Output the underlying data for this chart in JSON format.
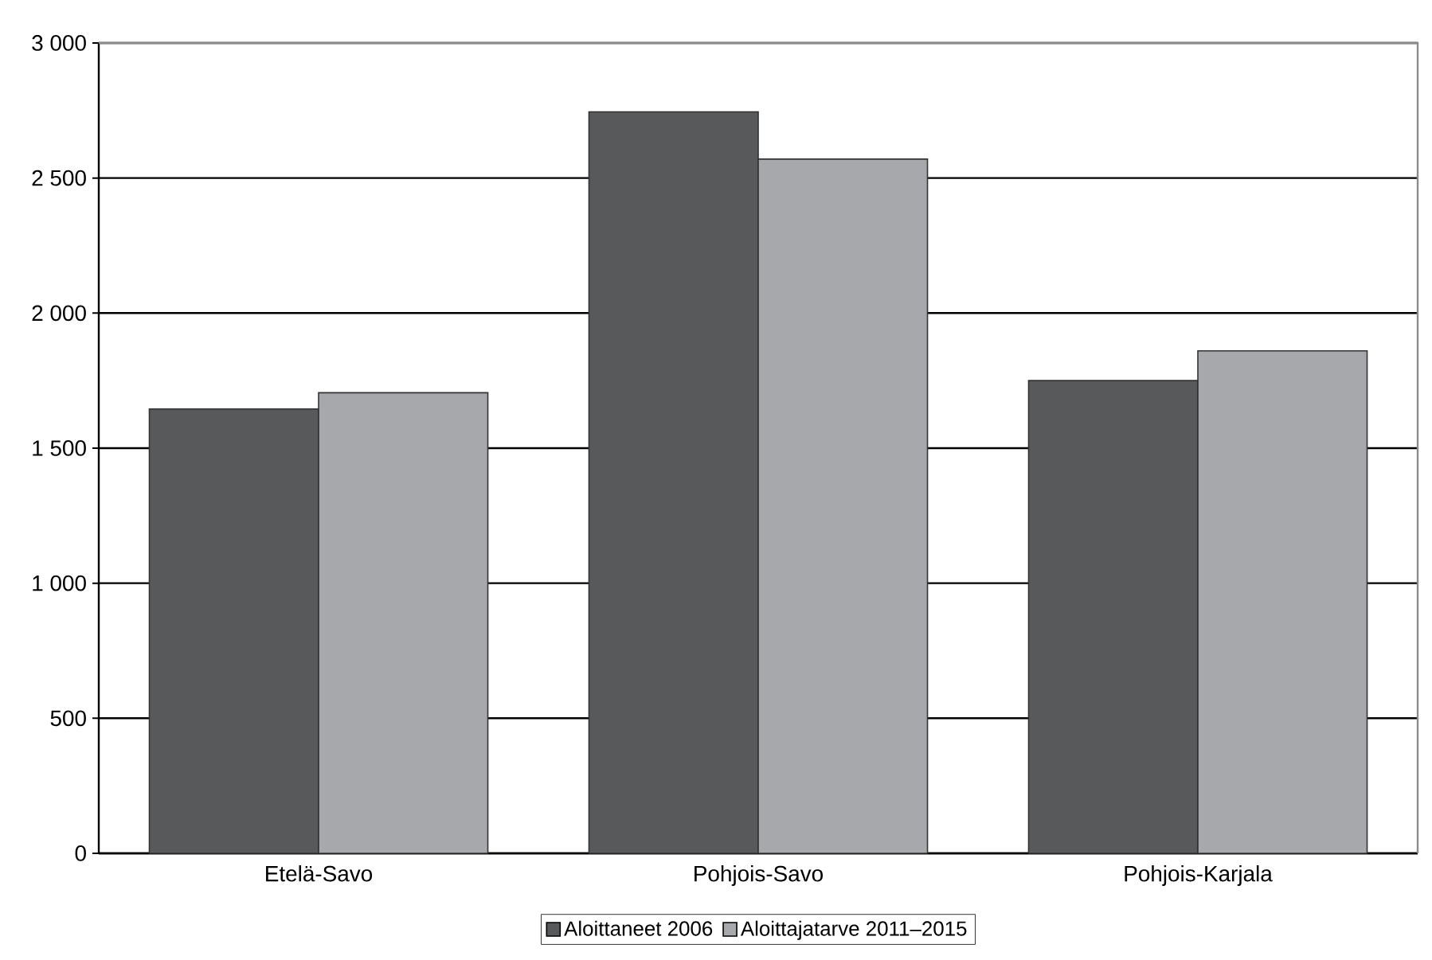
{
  "chart_data": {
    "type": "bar",
    "categories": [
      "Etelä-Savo",
      "Pohjois-Savo",
      "Pohjois-Karjala"
    ],
    "series": [
      {
        "name": "Aloittaneet  2006",
        "color": "#58595b",
        "values": [
          1645,
          2745,
          1750
        ]
      },
      {
        "name": "Aloittajatarve 2011–2015",
        "color": "#a7a8ac",
        "values": [
          1705,
          2570,
          1860
        ]
      }
    ],
    "ylim": [
      0,
      3000
    ],
    "yticks": [
      {
        "value": 0,
        "label": "0"
      },
      {
        "value": 500,
        "label": "500"
      },
      {
        "value": 1000,
        "label": "1 000"
      },
      {
        "value": 1500,
        "label": "1 500"
      },
      {
        "value": 2000,
        "label": "2 000"
      },
      {
        "value": 2500,
        "label": "2 500"
      },
      {
        "value": 3000,
        "label": "3 000"
      }
    ],
    "grid": "y",
    "legend": "bottom"
  }
}
